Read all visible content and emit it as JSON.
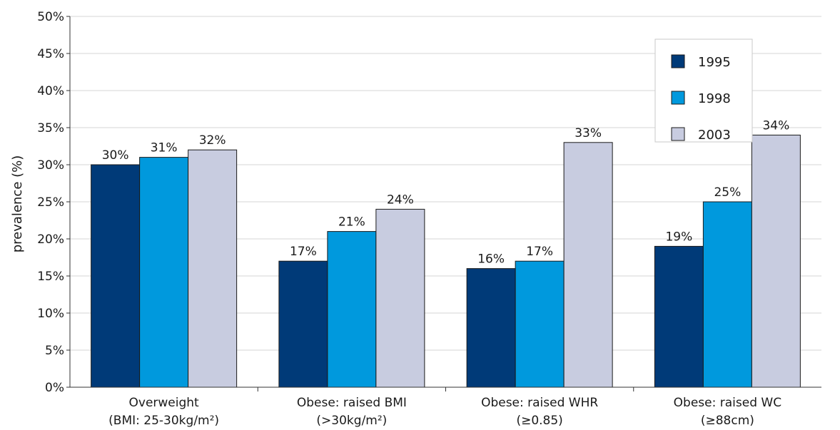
{
  "chart_data": {
    "type": "bar",
    "title": "",
    "xlabel": "",
    "ylabel": "prevalence (%)",
    "ylim": [
      0,
      50
    ],
    "yticks": [
      "0%",
      "5%",
      "10%",
      "15%",
      "20%",
      "25%",
      "30%",
      "35%",
      "40%",
      "45%",
      "50%"
    ],
    "grid": true,
    "legend_position": "top-right",
    "categories": [
      {
        "line1": "Overweight",
        "line2": "(BMI: 25-30kg/m²)"
      },
      {
        "line1": "Obese: raised BMI",
        "line2": "(>30kg/m²)"
      },
      {
        "line1": "Obese: raised WHR",
        "line2": "(≥0.85)"
      },
      {
        "line1": "Obese: raised WC",
        "line2": "(≥88cm)"
      }
    ],
    "series": [
      {
        "name": "1995",
        "color": "#003a78",
        "values": [
          30,
          17,
          16,
          19
        ],
        "labels": [
          "30%",
          "17%",
          "16%",
          "19%"
        ]
      },
      {
        "name": "1998",
        "color": "#0099dd",
        "values": [
          31,
          21,
          17,
          25
        ],
        "labels": [
          "31%",
          "21%",
          "17%",
          "25%"
        ]
      },
      {
        "name": "2003",
        "color": "#c8cce0",
        "values": [
          32,
          24,
          33,
          34
        ],
        "labels": [
          "32%",
          "24%",
          "33%",
          "34%"
        ]
      }
    ]
  }
}
